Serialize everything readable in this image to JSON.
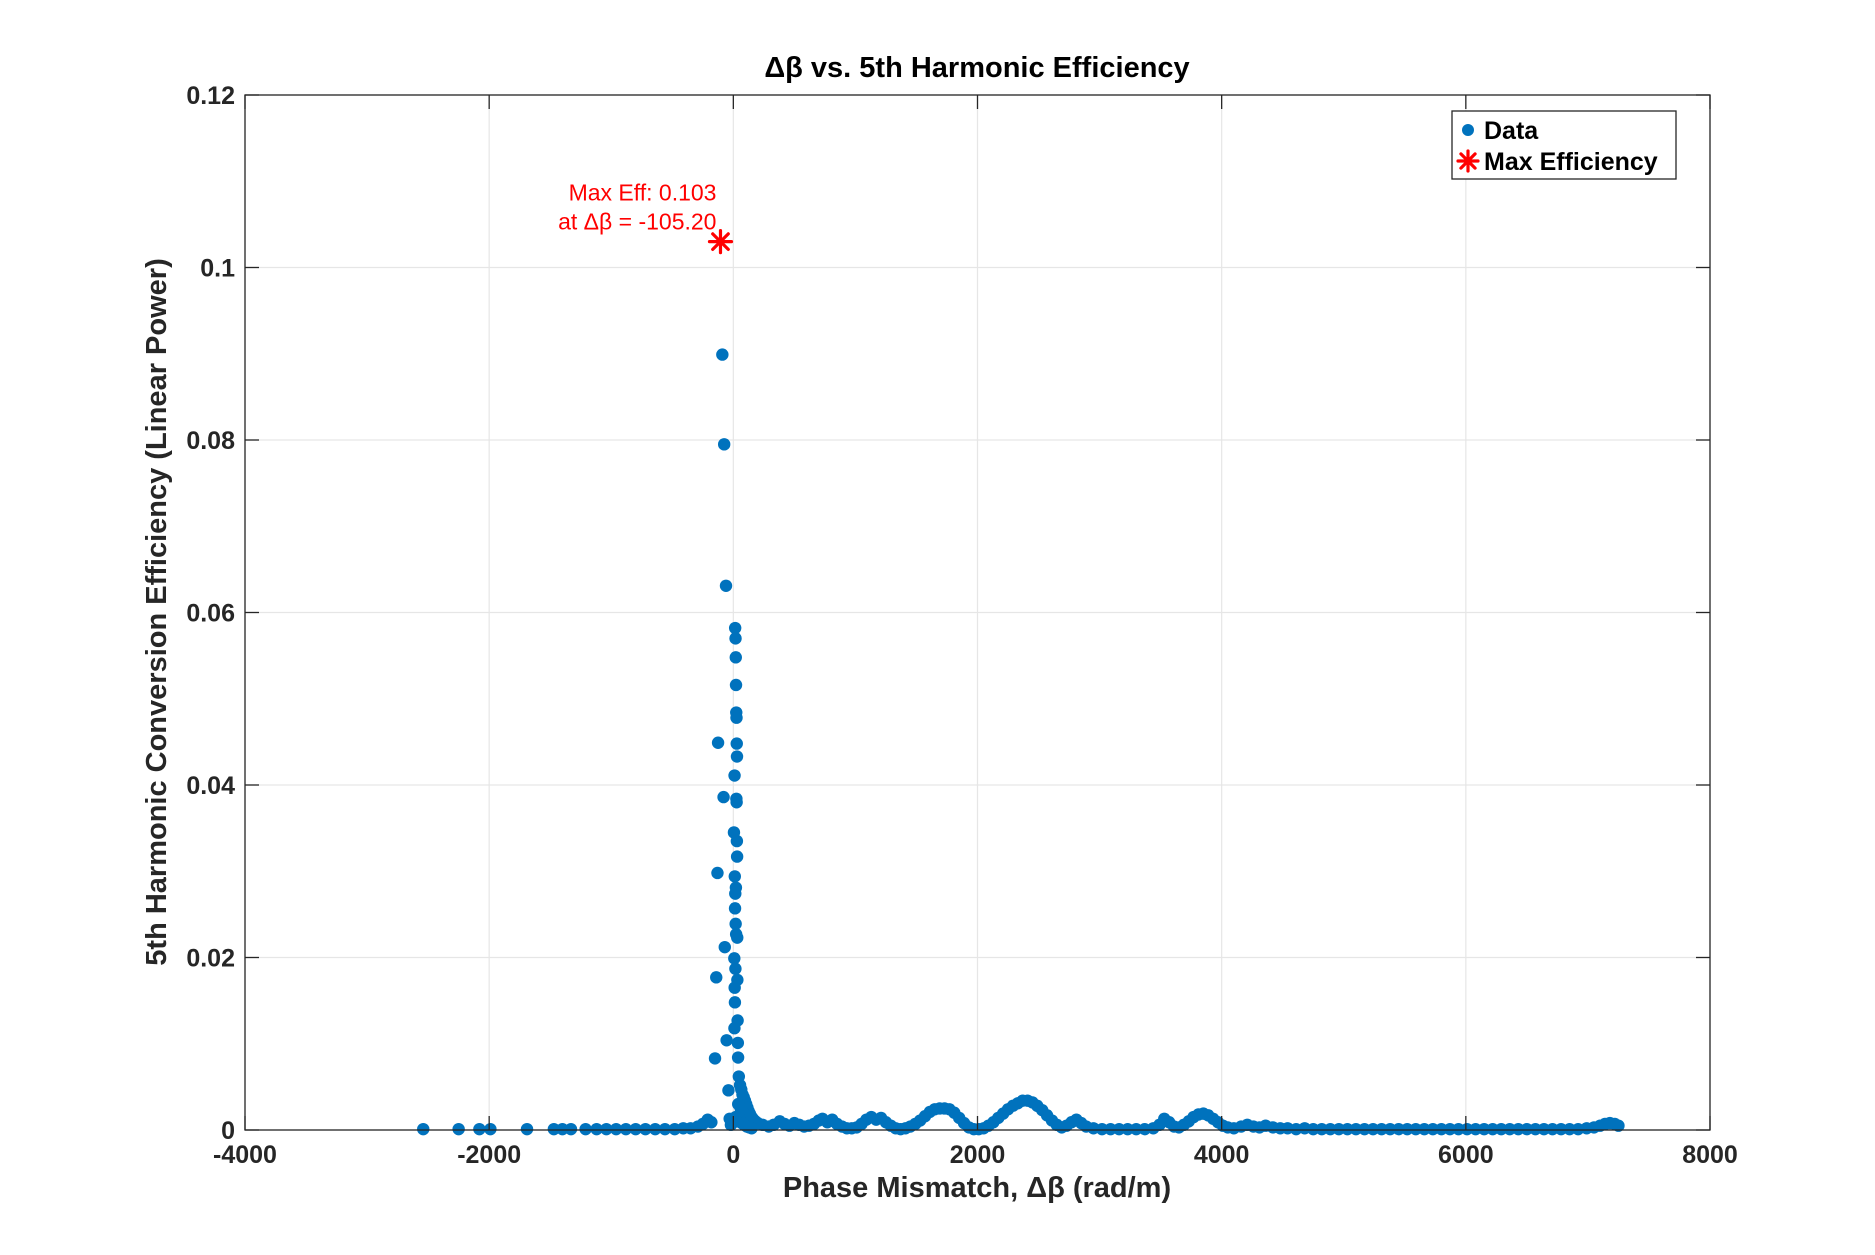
{
  "chart_data": {
    "type": "scatter",
    "title": "Δβ vs. 5th Harmonic Efficiency",
    "xlabel": "Phase Mismatch, Δβ (rad/m)",
    "ylabel": "5th Harmonic Conversion Efficiency (Linear Power)",
    "xlim": [
      -4000,
      8000
    ],
    "ylim": [
      0,
      0.12
    ],
    "xticks": [
      -4000,
      -2000,
      0,
      2000,
      4000,
      6000,
      8000
    ],
    "xtick_labels": [
      "-4000",
      "-2000",
      "0",
      "2000",
      "4000",
      "6000",
      "8000"
    ],
    "yticks": [
      0,
      0.02,
      0.04,
      0.06,
      0.08,
      0.1,
      0.12
    ],
    "ytick_labels": [
      "0",
      "0.02",
      "0.04",
      "0.06",
      "0.08",
      "0.1",
      "0.12"
    ],
    "grid": true,
    "legend_position": "top-right",
    "colors": {
      "data": "#0072BD",
      "max": "#ff0000",
      "grid": "#e6e6e6",
      "axis": "#262626"
    },
    "series": [
      {
        "name": "Data",
        "marker": "filled-circle",
        "points": [
          [
            -2540,
            0.0001
          ],
          [
            -2250,
            0.0001
          ],
          [
            -2080,
            0.0001
          ],
          [
            -1990,
            0.0001
          ],
          [
            -1690,
            0.0001
          ],
          [
            -1470,
            0.0001
          ],
          [
            -1400,
            0.0001
          ],
          [
            -1330,
            0.0001
          ],
          [
            -1210,
            0.0001
          ],
          [
            -1120,
            0.0001
          ],
          [
            -1040,
            0.0001
          ],
          [
            -960,
            0.0001
          ],
          [
            -880,
            0.0001
          ],
          [
            -800,
            0.0001
          ],
          [
            -720,
            0.0001
          ],
          [
            -640,
            0.0001
          ],
          [
            -560,
            0.0001
          ],
          [
            -480,
            0.0001
          ],
          [
            -410,
            0.0002
          ],
          [
            -350,
            0.0002
          ],
          [
            -290,
            0.0004
          ],
          [
            -250,
            0.0007
          ],
          [
            -210,
            0.0012
          ],
          [
            -180,
            0.0009
          ],
          [
            -150,
            0.0083
          ],
          [
            -140,
            0.0177
          ],
          [
            -130,
            0.0298
          ],
          [
            -125,
            0.0449
          ],
          [
            -90,
            0.0899
          ],
          [
            -75,
            0.0795
          ],
          [
            -60,
            0.0631
          ],
          [
            -80,
            0.0386
          ],
          [
            -70,
            0.0212
          ],
          [
            -55,
            0.0104
          ],
          [
            -40,
            0.0046
          ],
          [
            -30,
            0.0013
          ],
          [
            -20,
            0.0006
          ],
          [
            15,
            0.0582
          ],
          [
            18,
            0.057
          ],
          [
            20,
            0.0548
          ],
          [
            22,
            0.0516
          ],
          [
            24,
            0.0484
          ],
          [
            26,
            0.0478
          ],
          [
            28,
            0.0448
          ],
          [
            30,
            0.0433
          ],
          [
            10,
            0.0411
          ],
          [
            25,
            0.0384
          ],
          [
            27,
            0.038
          ],
          [
            5,
            0.0345
          ],
          [
            29,
            0.0335
          ],
          [
            31,
            0.0317
          ],
          [
            12,
            0.0294
          ],
          [
            16,
            0.0274
          ],
          [
            21,
            0.0281
          ],
          [
            14,
            0.0257
          ],
          [
            19,
            0.0239
          ],
          [
            23,
            0.0227
          ],
          [
            32,
            0.0223
          ],
          [
            8,
            0.0199
          ],
          [
            17,
            0.0187
          ],
          [
            33,
            0.0174
          ],
          [
            11,
            0.0165
          ],
          [
            13,
            0.0148
          ],
          [
            35,
            0.0127
          ],
          [
            9,
            0.0118
          ],
          [
            37,
            0.0101
          ],
          [
            39,
            0.0084
          ],
          [
            45,
            0.0062
          ],
          [
            55,
            0.0052
          ],
          [
            65,
            0.0047
          ],
          [
            75,
            0.0041
          ],
          [
            85,
            0.0038
          ],
          [
            95,
            0.0034
          ],
          [
            105,
            0.003
          ],
          [
            115,
            0.0026
          ],
          [
            125,
            0.0022
          ],
          [
            135,
            0.0019
          ],
          [
            145,
            0.0016
          ],
          [
            160,
            0.0013
          ],
          [
            180,
            0.001
          ],
          [
            200,
            0.0008
          ],
          [
            40,
            0.003
          ],
          [
            60,
            0.0025
          ],
          [
            80,
            0.002
          ],
          [
            100,
            0.0015
          ],
          [
            120,
            0.0012
          ],
          [
            140,
            0.0009
          ],
          [
            50,
            0.0012
          ],
          [
            70,
            0.0008
          ],
          [
            90,
            0.0006
          ],
          [
            110,
            0.0004
          ],
          [
            130,
            0.0003
          ],
          [
            150,
            0.0002
          ],
          [
            20,
            0.0015
          ],
          [
            30,
            0.001
          ],
          [
            240,
            0.0006
          ],
          [
            290,
            0.0004
          ],
          [
            330,
            0.0006
          ],
          [
            380,
            0.001
          ],
          [
            420,
            0.0007
          ],
          [
            460,
            0.0005
          ],
          [
            500,
            0.0008
          ],
          [
            540,
            0.0006
          ],
          [
            580,
            0.0004
          ],
          [
            620,
            0.0005
          ],
          [
            660,
            0.0007
          ],
          [
            700,
            0.0011
          ],
          [
            730,
            0.0013
          ],
          [
            770,
            0.0009
          ],
          [
            810,
            0.0012
          ],
          [
            850,
            0.0007
          ],
          [
            890,
            0.0004
          ],
          [
            930,
            0.0002
          ],
          [
            970,
            0.0002
          ],
          [
            1010,
            0.0003
          ],
          [
            1050,
            0.0007
          ],
          [
            1090,
            0.0012
          ],
          [
            1130,
            0.0015
          ],
          [
            1170,
            0.0012
          ],
          [
            1210,
            0.0014
          ],
          [
            1250,
            0.0009
          ],
          [
            1290,
            0.0005
          ],
          [
            1330,
            0.0002
          ],
          [
            1370,
            0.0001
          ],
          [
            1410,
            0.0002
          ],
          [
            1450,
            0.0004
          ],
          [
            1490,
            0.0007
          ],
          [
            1530,
            0.0011
          ],
          [
            1570,
            0.0016
          ],
          [
            1610,
            0.0021
          ],
          [
            1650,
            0.0024
          ],
          [
            1690,
            0.0025
          ],
          [
            1730,
            0.0025
          ],
          [
            1770,
            0.0024
          ],
          [
            1810,
            0.002
          ],
          [
            1850,
            0.0014
          ],
          [
            1890,
            0.0008
          ],
          [
            1930,
            0.0003
          ],
          [
            1970,
            0.0001
          ],
          [
            2010,
            0.0001
          ],
          [
            2050,
            0.0002
          ],
          [
            2090,
            0.0005
          ],
          [
            2130,
            0.0009
          ],
          [
            2170,
            0.0014
          ],
          [
            2210,
            0.0019
          ],
          [
            2250,
            0.0024
          ],
          [
            2290,
            0.0028
          ],
          [
            2330,
            0.0031
          ],
          [
            2370,
            0.0034
          ],
          [
            2410,
            0.0034
          ],
          [
            2450,
            0.0032
          ],
          [
            2490,
            0.0028
          ],
          [
            2530,
            0.0023
          ],
          [
            2570,
            0.0017
          ],
          [
            2610,
            0.0011
          ],
          [
            2650,
            0.0006
          ],
          [
            2690,
            0.0003
          ],
          [
            2730,
            0.0005
          ],
          [
            2770,
            0.0009
          ],
          [
            2810,
            0.0012
          ],
          [
            2850,
            0.0008
          ],
          [
            2890,
            0.0004
          ],
          [
            2950,
            0.0002
          ],
          [
            3020,
            0.0001
          ],
          [
            3090,
            0.0001
          ],
          [
            3160,
            0.0001
          ],
          [
            3230,
            0.0001
          ],
          [
            3300,
            0.0001
          ],
          [
            3370,
            0.0001
          ],
          [
            3440,
            0.0002
          ],
          [
            3490,
            0.0006
          ],
          [
            3530,
            0.0013
          ],
          [
            3570,
            0.0009
          ],
          [
            3610,
            0.0004
          ],
          [
            3650,
            0.0003
          ],
          [
            3690,
            0.0006
          ],
          [
            3730,
            0.001
          ],
          [
            3770,
            0.0015
          ],
          [
            3810,
            0.0018
          ],
          [
            3850,
            0.0019
          ],
          [
            3890,
            0.0017
          ],
          [
            3930,
            0.0013
          ],
          [
            3970,
            0.0009
          ],
          [
            4010,
            0.0005
          ],
          [
            4050,
            0.0003
          ],
          [
            4100,
            0.0002
          ],
          [
            4160,
            0.0004
          ],
          [
            4210,
            0.0006
          ],
          [
            4260,
            0.0004
          ],
          [
            4310,
            0.0003
          ],
          [
            4360,
            0.0005
          ],
          [
            4420,
            0.0003
          ],
          [
            4480,
            0.0002
          ],
          [
            4540,
            0.0002
          ],
          [
            4610,
            0.0001
          ],
          [
            4680,
            0.0002
          ],
          [
            4750,
            0.0001
          ],
          [
            4820,
            0.0001
          ],
          [
            4890,
            0.0001
          ],
          [
            4960,
            0.0001
          ],
          [
            5030,
            0.0001
          ],
          [
            5100,
            0.0001
          ],
          [
            5170,
            0.0001
          ],
          [
            5240,
            0.0001
          ],
          [
            5310,
            0.0001
          ],
          [
            5380,
            0.0001
          ],
          [
            5450,
            0.0001
          ],
          [
            5520,
            0.0001
          ],
          [
            5590,
            0.0001
          ],
          [
            5660,
            0.0001
          ],
          [
            5730,
            0.0001
          ],
          [
            5800,
            0.0001
          ],
          [
            5870,
            0.0001
          ],
          [
            5940,
            0.0001
          ],
          [
            6010,
            0.0001
          ],
          [
            6080,
            0.0001
          ],
          [
            6150,
            0.0001
          ],
          [
            6220,
            0.0001
          ],
          [
            6290,
            0.0001
          ],
          [
            6360,
            0.0001
          ],
          [
            6430,
            0.0001
          ],
          [
            6500,
            0.0001
          ],
          [
            6570,
            0.0001
          ],
          [
            6640,
            0.0001
          ],
          [
            6710,
            0.0001
          ],
          [
            6780,
            0.0001
          ],
          [
            6850,
            0.0001
          ],
          [
            6920,
            0.0001
          ],
          [
            6990,
            0.0002
          ],
          [
            7050,
            0.0003
          ],
          [
            7100,
            0.0005
          ],
          [
            7140,
            0.0007
          ],
          [
            7180,
            0.0008
          ],
          [
            7220,
            0.0007
          ],
          [
            7250,
            0.0005
          ]
        ]
      },
      {
        "name": "Max Efficiency",
        "marker": "asterisk",
        "points": [
          [
            -105.2,
            0.103
          ]
        ]
      }
    ],
    "annotation": {
      "line1": "Max Eff: 0.103",
      "line2": "at Δβ = -105.20",
      "x": -105.2,
      "y": 0.103
    }
  }
}
